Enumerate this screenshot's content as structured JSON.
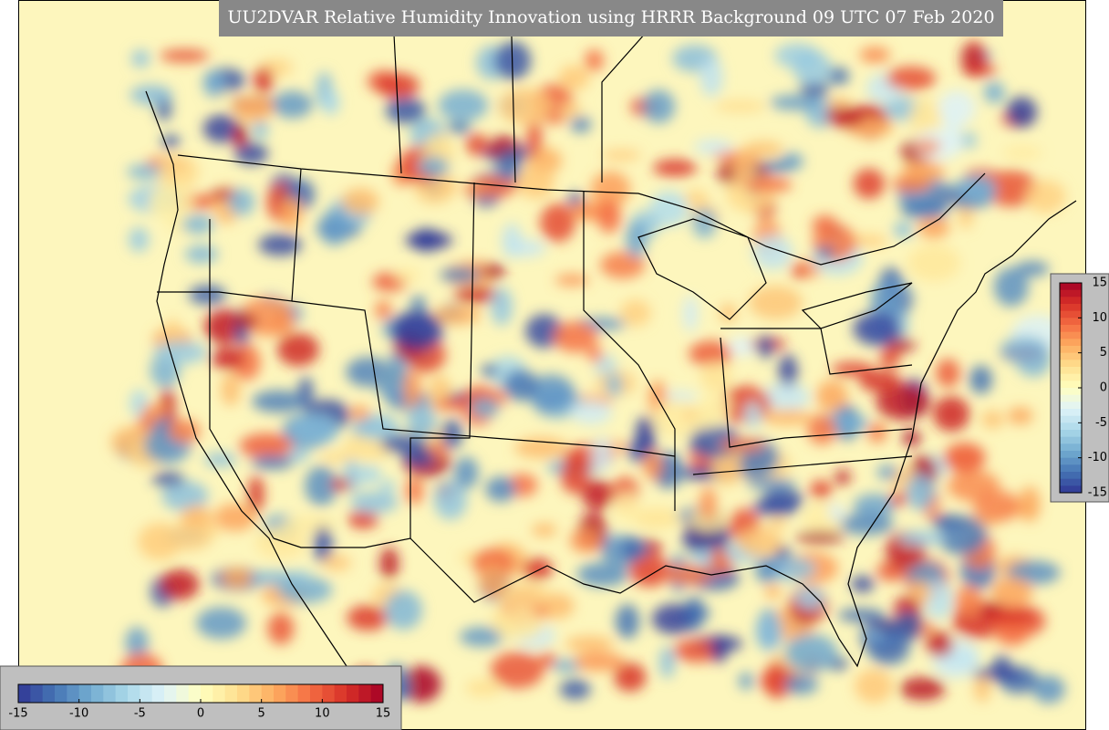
{
  "title": "UU2DVAR Relative Humidity Innovation using HRRR Background 09 UTC 07 Feb 2020",
  "colormap": [
    "#313695",
    "#4575b4",
    "#74add1",
    "#abd9e9",
    "#e0f3f8",
    "#ffffbf",
    "#fee090",
    "#fdae61",
    "#f46d43",
    "#d73027",
    "#a50026"
  ],
  "colorbar_vertical": {
    "range": [
      -15,
      15
    ],
    "ticks": [
      -15,
      -10,
      -5,
      0,
      5,
      10,
      15
    ]
  },
  "colorbar_horizontal": {
    "range": [
      -15,
      15
    ],
    "ticks": [
      -15,
      -10,
      -5,
      0,
      5,
      10,
      15
    ]
  }
}
